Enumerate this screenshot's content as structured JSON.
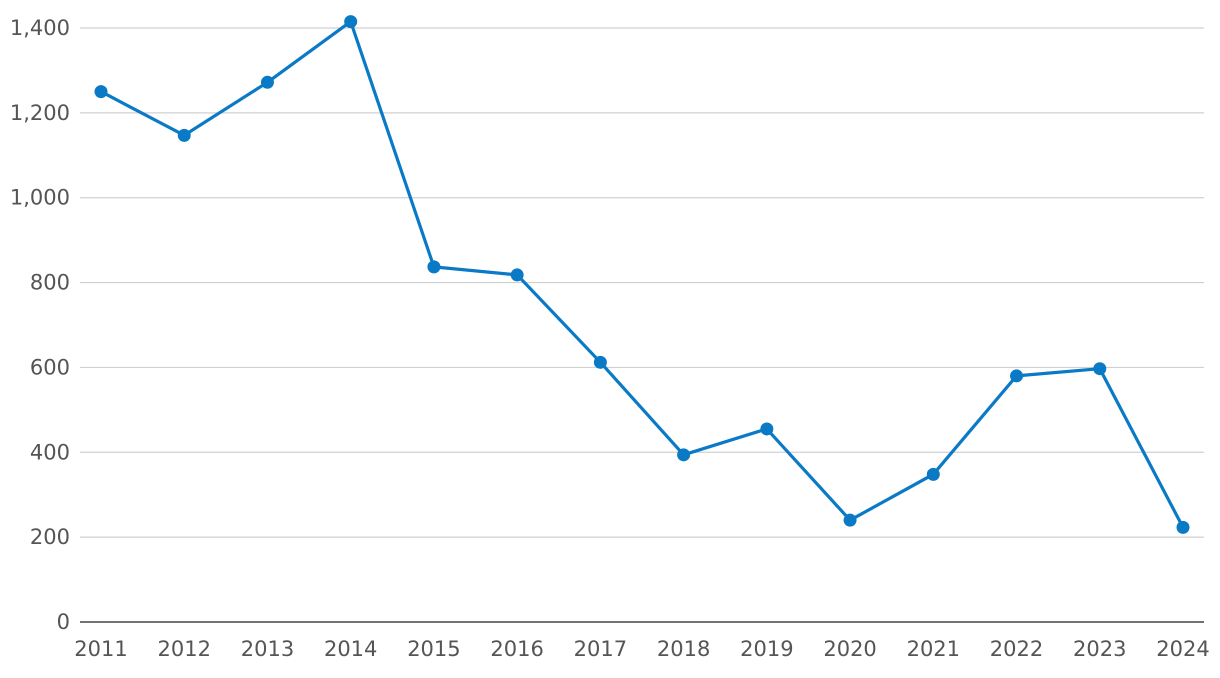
{
  "chart_data": {
    "type": "line",
    "title": "",
    "xlabel": "",
    "ylabel": "",
    "categories": [
      "2011",
      "2012",
      "2013",
      "2014",
      "2015",
      "2016",
      "2017",
      "2018",
      "2019",
      "2020",
      "2021",
      "2022",
      "2023",
      "2024"
    ],
    "series": [
      {
        "values": [
          1250,
          1147,
          1272,
          1415,
          837,
          818,
          612,
          394,
          455,
          240,
          348,
          580,
          597,
          223
        ],
        "color": "#0a7ac6"
      }
    ],
    "ylim": [
      0,
      1400
    ],
    "yticks": [
      0,
      200,
      400,
      600,
      800,
      1000,
      1200,
      1400
    ],
    "ytick_labels": [
      "0",
      "200",
      "400",
      "600",
      "800",
      "1,000",
      "1,200",
      "1,400"
    ],
    "grid": true,
    "legend": "none",
    "markers": true
  }
}
